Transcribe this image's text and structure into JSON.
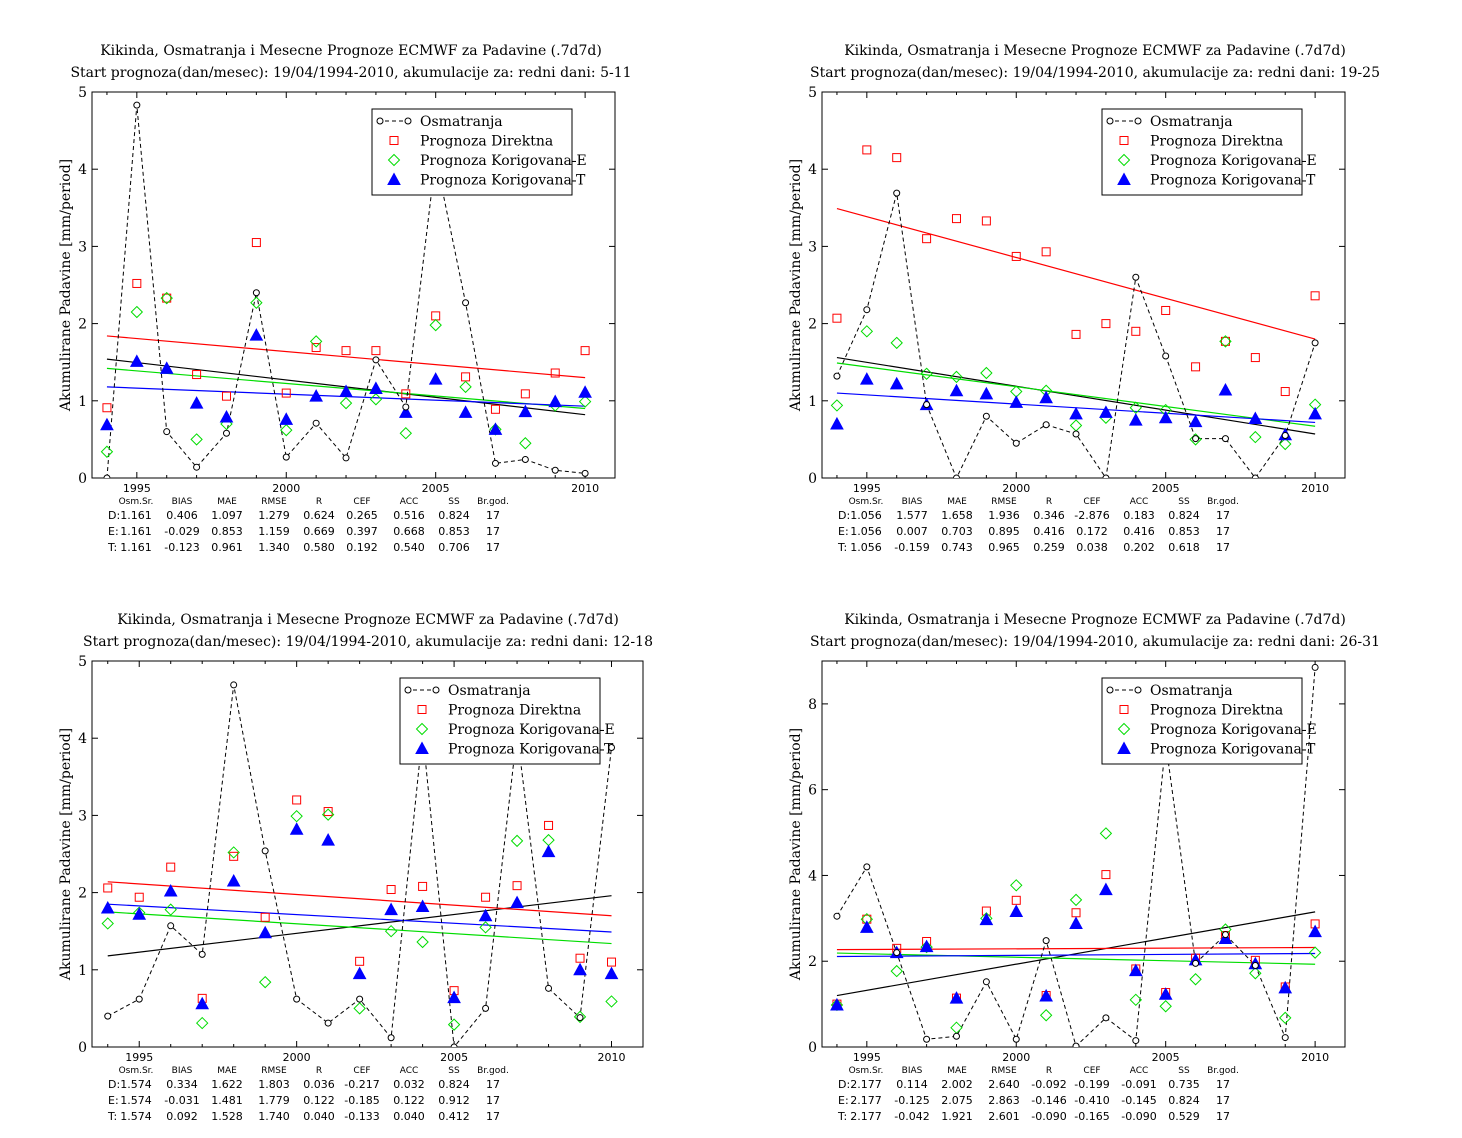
{
  "chart_data": [
    {
      "type": "scatter",
      "title": "Kikinda, Osmatranja i Mesecne Prognoze ECMWF za Padavine (.7d7d)",
      "subtitle": "Start prognoza(dan/mesec): 19/04/1994-2010, akumulacije za: redni dani: 5-11",
      "ylabel": "Akumulirane Padavine [mm/period]",
      "xlabel": "",
      "xlim": [
        1993.5,
        2011.0
      ],
      "ylim": [
        0,
        5
      ],
      "xticks": [
        1995,
        2000,
        2005,
        2010
      ],
      "yticks": [
        0,
        1,
        2,
        3,
        4,
        5
      ],
      "legend_position": "top-right",
      "x": [
        1994,
        1995,
        1996,
        1997,
        1998,
        1999,
        2000,
        2001,
        2002,
        2003,
        2004,
        2005,
        2006,
        2007,
        2008,
        2009,
        2010
      ],
      "series": [
        {
          "name": "Osmatranja",
          "color": "#000000",
          "marker": "circle",
          "line": "dashed",
          "values": [
            0.0,
            4.83,
            0.6,
            0.14,
            0.58,
            2.4,
            0.27,
            0.71,
            0.26,
            1.53,
            0.92,
            4.15,
            2.27,
            0.19,
            0.24,
            0.1,
            0.06
          ]
        },
        {
          "name": "Prognoza Direktna",
          "color": "#ff0000",
          "marker": "square",
          "values": [
            0.91,
            2.52,
            2.33,
            1.34,
            1.06,
            3.05,
            1.1,
            1.69,
            1.65,
            1.65,
            1.09,
            2.1,
            1.31,
            0.89,
            1.09,
            1.36,
            1.65
          ]
        },
        {
          "name": "Prognoza Korigovana-E",
          "color": "#00dd00",
          "marker": "diamond",
          "values": [
            0.34,
            2.15,
            2.33,
            0.5,
            0.7,
            2.27,
            0.62,
            1.77,
            0.97,
            1.02,
            0.58,
            1.98,
            1.18,
            0.63,
            0.45,
            0.94,
            0.99
          ]
        },
        {
          "name": "Prognoza Korigovana-T",
          "color": "#0000ff",
          "marker": "triangle",
          "values": [
            0.69,
            1.51,
            1.42,
            0.97,
            0.79,
            1.85,
            0.76,
            1.06,
            1.12,
            1.16,
            0.85,
            1.28,
            0.85,
            0.63,
            0.86,
            0.99,
            1.11
          ]
        }
      ],
      "trendlines": [
        {
          "color": "#000000",
          "start": [
            1994,
            1.54
          ],
          "end": [
            2010,
            0.82
          ]
        },
        {
          "color": "#ff0000",
          "start": [
            1994,
            1.84
          ],
          "end": [
            2010,
            1.3
          ]
        },
        {
          "color": "#00dd00",
          "start": [
            1994,
            1.42
          ],
          "end": [
            2010,
            0.9
          ]
        },
        {
          "color": "#0000ff",
          "start": [
            1994,
            1.18
          ],
          "end": [
            2010,
            0.93
          ]
        }
      ],
      "stats": {
        "headers": [
          "Osm.Sr.",
          "BIAS",
          "MAE",
          "RMSE",
          "R",
          "CEF",
          "ACC",
          "SS",
          "Br.god."
        ],
        "rows": [
          {
            "label": "D:",
            "color": "#ff0000",
            "values": [
              "1.161",
              "0.406",
              "1.097",
              "1.279",
              "0.624",
              "0.265",
              "0.516",
              "0.824",
              "17"
            ]
          },
          {
            "label": "E:",
            "color": "#00cc00",
            "values": [
              "1.161",
              "-0.029",
              "0.853",
              "1.159",
              "0.669",
              "0.397",
              "0.668",
              "0.853",
              "17"
            ]
          },
          {
            "label": "T:",
            "color": "#0000ff",
            "values": [
              "1.161",
              "-0.123",
              "0.961",
              "1.340",
              "0.580",
              "0.192",
              "0.540",
              "0.706",
              "17"
            ]
          }
        ]
      }
    },
    {
      "type": "scatter",
      "title": "Kikinda, Osmatranja i Mesecne Prognoze ECMWF za Padavine (.7d7d)",
      "subtitle": "Start prognoza(dan/mesec): 19/04/1994-2010, akumulacije za: redni dani: 19-25",
      "ylabel": "Akumulirane Padavine [mm/period]",
      "xlabel": "",
      "xlim": [
        1993.5,
        2011.0
      ],
      "ylim": [
        0,
        5
      ],
      "xticks": [
        1995,
        2000,
        2005,
        2010
      ],
      "yticks": [
        0,
        1,
        2,
        3,
        4,
        5
      ],
      "legend_position": "top-right",
      "x": [
        1994,
        1995,
        1996,
        1997,
        1998,
        1999,
        2000,
        2001,
        2002,
        2003,
        2004,
        2005,
        2006,
        2007,
        2008,
        2009,
        2010
      ],
      "series": [
        {
          "name": "Osmatranja",
          "color": "#000000",
          "marker": "circle",
          "line": "dashed",
          "values": [
            1.32,
            2.18,
            3.69,
            0.95,
            0.0,
            0.8,
            0.45,
            0.69,
            0.57,
            0.0,
            2.6,
            1.58,
            0.51,
            0.51,
            0.0,
            0.55,
            1.75
          ]
        },
        {
          "name": "Prognoza Direktna",
          "color": "#ff0000",
          "marker": "square",
          "values": [
            2.07,
            4.25,
            4.15,
            3.1,
            3.36,
            3.33,
            2.87,
            2.93,
            1.86,
            2.0,
            1.9,
            2.17,
            1.44,
            1.77,
            1.56,
            1.12,
            2.36
          ]
        },
        {
          "name": "Prognoza Korigovana-E",
          "color": "#00dd00",
          "marker": "diamond",
          "values": [
            0.94,
            1.9,
            1.75,
            1.35,
            1.31,
            1.36,
            1.12,
            1.13,
            0.68,
            0.78,
            0.91,
            0.88,
            0.5,
            1.77,
            0.53,
            0.44,
            0.95
          ]
        },
        {
          "name": "Prognoza Korigovana-T",
          "color": "#0000ff",
          "marker": "triangle",
          "values": [
            0.7,
            1.28,
            1.22,
            0.95,
            1.13,
            1.09,
            0.98,
            1.04,
            0.83,
            0.85,
            0.75,
            0.78,
            0.73,
            1.14,
            0.77,
            0.56,
            0.83
          ]
        }
      ],
      "trendlines": [
        {
          "color": "#000000",
          "start": [
            1994,
            1.56
          ],
          "end": [
            2010,
            0.57
          ]
        },
        {
          "color": "#ff0000",
          "start": [
            1994,
            3.49
          ],
          "end": [
            2010,
            1.8
          ]
        },
        {
          "color": "#00dd00",
          "start": [
            1994,
            1.49
          ],
          "end": [
            2010,
            0.67
          ]
        },
        {
          "color": "#0000ff",
          "start": [
            1994,
            1.1
          ],
          "end": [
            2010,
            0.72
          ]
        }
      ],
      "stats": {
        "headers": [
          "Osm.Sr.",
          "BIAS",
          "MAE",
          "RMSE",
          "R",
          "CEF",
          "ACC",
          "SS",
          "Br.god."
        ],
        "rows": [
          {
            "label": "D:",
            "color": "#ff0000",
            "values": [
              "1.056",
              "1.577",
              "1.658",
              "1.936",
              "0.346",
              "-2.876",
              "0.183",
              "0.824",
              "17"
            ]
          },
          {
            "label": "E:",
            "color": "#00cc00",
            "values": [
              "1.056",
              "0.007",
              "0.703",
              "0.895",
              "0.416",
              "0.172",
              "0.416",
              "0.853",
              "17"
            ]
          },
          {
            "label": "T:",
            "color": "#0000ff",
            "values": [
              "1.056",
              "-0.159",
              "0.743",
              "0.965",
              "0.259",
              "0.038",
              "0.202",
              "0.618",
              "17"
            ]
          }
        ]
      }
    },
    {
      "type": "scatter",
      "title": "Kikinda, Osmatranja i Mesecne Prognoze ECMWF za Padavine (.7d7d)",
      "subtitle": "Start prognoza(dan/mesec): 19/04/1994-2010, akumulacije za: redni dani: 12-18",
      "ylabel": "Akumulirane Padavine [mm/period]",
      "xlabel": "",
      "xlim": [
        1993.5,
        2011.0
      ],
      "ylim": [
        0,
        5
      ],
      "xticks": [
        1995,
        2000,
        2005,
        2010
      ],
      "yticks": [
        0,
        1,
        2,
        3,
        4,
        5
      ],
      "legend_position": "top-right",
      "x": [
        1994,
        1995,
        1996,
        1997,
        1998,
        1999,
        2000,
        2001,
        2002,
        2003,
        2004,
        2005,
        2006,
        2007,
        2008,
        2009,
        2010
      ],
      "series": [
        {
          "name": "Osmatranja",
          "color": "#000000",
          "marker": "circle",
          "line": "dashed",
          "values": [
            0.4,
            0.62,
            1.57,
            1.2,
            4.69,
            2.54,
            0.62,
            0.31,
            0.62,
            0.12,
            4.07,
            0.0,
            0.5,
            4.07,
            0.76,
            0.38,
            3.88
          ]
        },
        {
          "name": "Prognoza Direktna",
          "color": "#ff0000",
          "marker": "square",
          "values": [
            2.06,
            1.94,
            2.33,
            0.63,
            2.47,
            1.68,
            3.2,
            3.05,
            1.11,
            2.04,
            2.08,
            0.73,
            1.94,
            2.09,
            2.87,
            1.15,
            1.1
          ]
        },
        {
          "name": "Prognoza Korigovana-E",
          "color": "#00dd00",
          "marker": "diamond",
          "values": [
            1.6,
            1.74,
            1.78,
            0.31,
            2.52,
            0.84,
            2.99,
            3.01,
            0.5,
            1.5,
            1.36,
            0.29,
            1.55,
            2.67,
            2.68,
            0.39,
            0.59
          ]
        },
        {
          "name": "Prognoza Korigovana-T",
          "color": "#0000ff",
          "marker": "triangle",
          "values": [
            1.8,
            1.72,
            2.02,
            0.56,
            2.15,
            1.48,
            2.82,
            2.68,
            0.95,
            1.78,
            1.82,
            0.64,
            1.7,
            1.87,
            2.53,
            1.0,
            0.95
          ]
        }
      ],
      "trendlines": [
        {
          "color": "#000000",
          "start": [
            1994,
            1.18
          ],
          "end": [
            2010,
            1.96
          ]
        },
        {
          "color": "#ff0000",
          "start": [
            1994,
            2.14
          ],
          "end": [
            2010,
            1.7
          ]
        },
        {
          "color": "#00dd00",
          "start": [
            1994,
            1.75
          ],
          "end": [
            2010,
            1.34
          ]
        },
        {
          "color": "#0000ff",
          "start": [
            1994,
            1.85
          ],
          "end": [
            2010,
            1.49
          ]
        }
      ],
      "stats": {
        "headers": [
          "Osm.Sr.",
          "BIAS",
          "MAE",
          "RMSE",
          "R",
          "CEF",
          "ACC",
          "SS",
          "Br.god."
        ],
        "rows": [
          {
            "label": "D:",
            "color": "#ff0000",
            "values": [
              "1.574",
              "0.334",
              "1.622",
              "1.803",
              "0.036",
              "-0.217",
              "0.032",
              "0.824",
              "17"
            ]
          },
          {
            "label": "E:",
            "color": "#00cc00",
            "values": [
              "1.574",
              "-0.031",
              "1.481",
              "1.779",
              "0.122",
              "-0.185",
              "0.122",
              "0.912",
              "17"
            ]
          },
          {
            "label": "T:",
            "color": "#0000ff",
            "values": [
              "1.574",
              "0.092",
              "1.528",
              "1.740",
              "0.040",
              "-0.133",
              "0.040",
              "0.412",
              "17"
            ]
          }
        ]
      }
    },
    {
      "type": "scatter",
      "title": "Kikinda, Osmatranja i Mesecne Prognoze ECMWF za Padavine (.7d7d)",
      "subtitle": "Start prognoza(dan/mesec): 19/04/1994-2010, akumulacije za: redni dani: 26-31",
      "ylabel": "Akumulirane Padavine [mm/period]",
      "xlabel": "",
      "xlim": [
        1993.5,
        2011.0
      ],
      "ylim": [
        0,
        9
      ],
      "xticks": [
        1995,
        2000,
        2005,
        2010
      ],
      "yticks": [
        0,
        2,
        4,
        6,
        8
      ],
      "legend_position": "top-right",
      "x": [
        1994,
        1995,
        1996,
        1997,
        1998,
        1999,
        2000,
        2001,
        2002,
        2003,
        2004,
        2005,
        2006,
        2007,
        2008,
        2009,
        2010
      ],
      "series": [
        {
          "name": "Osmatranja",
          "color": "#000000",
          "marker": "circle",
          "line": "dashed",
          "values": [
            3.05,
            4.2,
            2.2,
            0.18,
            0.25,
            1.52,
            0.18,
            2.48,
            0.02,
            0.68,
            0.15,
            7.1,
            1.95,
            2.62,
            1.9,
            0.22,
            8.85
          ]
        },
        {
          "name": "Prognoza Direktna",
          "color": "#ff0000",
          "marker": "square",
          "values": [
            1.0,
            2.98,
            2.3,
            2.46,
            1.14,
            3.17,
            3.42,
            1.2,
            3.13,
            4.02,
            1.82,
            1.27,
            2.07,
            2.6,
            2.02,
            1.4,
            2.87
          ]
        },
        {
          "name": "Prognoza Korigovana-E",
          "color": "#00dd00",
          "marker": "diamond",
          "values": [
            0.98,
            2.98,
            1.77,
            2.33,
            0.45,
            3.0,
            3.77,
            0.74,
            3.43,
            4.98,
            1.1,
            0.95,
            1.58,
            2.74,
            1.72,
            0.68,
            2.2
          ]
        },
        {
          "name": "Prognoza Korigovana-T",
          "color": "#0000ff",
          "marker": "triangle",
          "values": [
            0.98,
            2.79,
            2.2,
            2.34,
            1.14,
            2.97,
            3.16,
            1.19,
            2.88,
            3.67,
            1.78,
            1.23,
            2.03,
            2.53,
            1.94,
            1.38,
            2.69
          ]
        }
      ],
      "trendlines": [
        {
          "color": "#000000",
          "start": [
            1994,
            1.2
          ],
          "end": [
            2010,
            3.15
          ]
        },
        {
          "color": "#ff0000",
          "start": [
            1994,
            2.27
          ],
          "end": [
            2010,
            2.32
          ]
        },
        {
          "color": "#00dd00",
          "start": [
            1994,
            2.19
          ],
          "end": [
            2010,
            1.93
          ]
        },
        {
          "color": "#0000ff",
          "start": [
            1994,
            2.11
          ],
          "end": [
            2010,
            2.18
          ]
        }
      ],
      "stats": {
        "headers": [
          "Osm.Sr.",
          "BIAS",
          "MAE",
          "RMSE",
          "R",
          "CEF",
          "ACC",
          "SS",
          "Br.god."
        ],
        "rows": [
          {
            "label": "D:",
            "color": "#ff0000",
            "values": [
              "2.177",
              "0.114",
              "2.002",
              "2.640",
              "-0.092",
              "-0.199",
              "-0.091",
              "0.735",
              "17"
            ]
          },
          {
            "label": "E:",
            "color": "#00cc00",
            "values": [
              "2.177",
              "-0.125",
              "2.075",
              "2.863",
              "-0.146",
              "-0.410",
              "-0.145",
              "0.824",
              "17"
            ]
          },
          {
            "label": "T:",
            "color": "#0000ff",
            "values": [
              "2.177",
              "-0.042",
              "1.921",
              "2.601",
              "-0.090",
              "-0.165",
              "-0.090",
              "0.529",
              "17"
            ]
          }
        ]
      }
    }
  ]
}
